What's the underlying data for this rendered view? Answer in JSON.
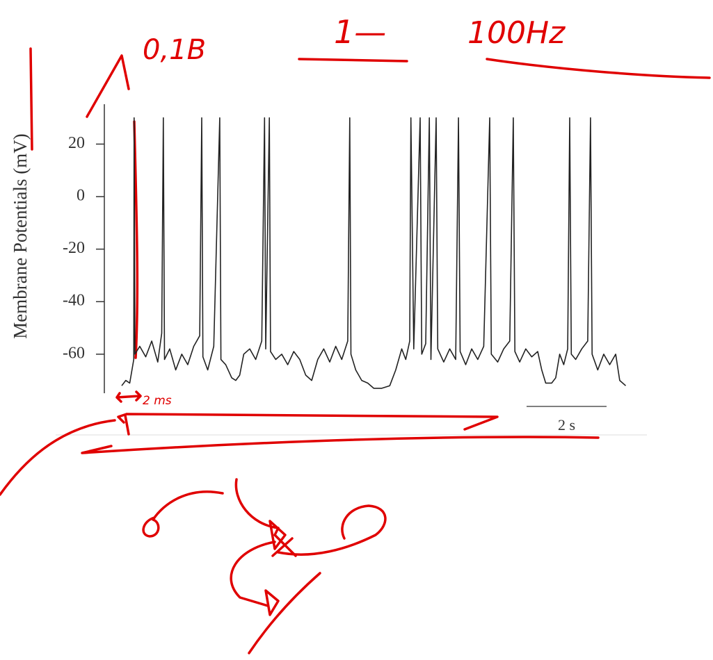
{
  "chart_data": {
    "type": "line",
    "ylabel": "Membrane Potentials (mV)",
    "color": "#222222",
    "annotation_color": "#e00000",
    "x": [
      0,
      0.1,
      0.2,
      0.3,
      0.31,
      0.33,
      0.45,
      0.6,
      0.75,
      0.9,
      1.0,
      1.04,
      1.07,
      1.2,
      1.35,
      1.5,
      1.65,
      1.8,
      1.95,
      2.0,
      2.03,
      2.15,
      2.3,
      2.45,
      2.48,
      2.6,
      2.75,
      2.85,
      2.95,
      3.05,
      3.2,
      3.35,
      3.5,
      3.57,
      3.6,
      3.69,
      3.72,
      3.85,
      4.0,
      4.15,
      4.3,
      4.45,
      4.6,
      4.75,
      4.9,
      5.05,
      5.2,
      5.35,
      5.5,
      5.65,
      5.7,
      5.73,
      5.85,
      6.0,
      6.15,
      6.3,
      6.5,
      6.7,
      6.85,
      7.0,
      7.1,
      7.2,
      7.23,
      7.3,
      7.46,
      7.5,
      7.6,
      7.69,
      7.73,
      7.86,
      7.9,
      8.05,
      8.2,
      8.35,
      8.42,
      8.46,
      8.6,
      8.75,
      8.9,
      9.05,
      9.2,
      9.24,
      9.4,
      9.55,
      9.7,
      9.79,
      9.83,
      9.95,
      10.1,
      10.25,
      10.4,
      10.5,
      10.6,
      10.75,
      10.85,
      10.95,
      11.05,
      11.15,
      11.2,
      11.24,
      11.35,
      11.5,
      11.65,
      11.72,
      11.76,
      11.9,
      12.05,
      12.2,
      12.35,
      12.45,
      12.6
    ],
    "values": [
      -72,
      -70,
      -71,
      -62,
      30,
      -60,
      -57,
      -61,
      -55,
      -63,
      -52,
      30,
      -62,
      -58,
      -66,
      -60,
      -64,
      -57,
      -53,
      30,
      -61,
      -66,
      -57,
      30,
      -62,
      -64,
      -69,
      -70,
      -68,
      -60,
      -58,
      -62,
      -55,
      30,
      -58,
      30,
      -59,
      -62,
      -60,
      -64,
      -59,
      -62,
      -68,
      -70,
      -62,
      -58,
      -63,
      -57,
      -62,
      -55,
      30,
      -60,
      -66,
      -70,
      -71,
      -73,
      -73,
      -72,
      -66,
      -58,
      -62,
      -55,
      30,
      -58,
      30,
      -60,
      -56,
      30,
      -62,
      30,
      -58,
      -63,
      -58,
      -62,
      30,
      -59,
      -64,
      -58,
      -62,
      -57,
      30,
      -60,
      -63,
      -58,
      -55,
      30,
      -59,
      -63,
      -58,
      -61,
      -59,
      -66,
      -71,
      -71,
      -69,
      -60,
      -64,
      -58,
      30,
      -60,
      -62,
      -58,
      -55,
      30,
      -60,
      -66,
      -60,
      -64,
      -60,
      -70,
      -72
    ],
    "xlim": [
      0,
      12.7
    ],
    "ylim": [
      -75,
      35
    ],
    "yticks": [
      -60,
      -40,
      -20,
      0,
      20
    ],
    "scale_bar": {
      "length": 2,
      "label": "2 s"
    },
    "annotations": [
      "0,1B",
      "1—",
      "100Hz",
      "2 ms"
    ]
  }
}
